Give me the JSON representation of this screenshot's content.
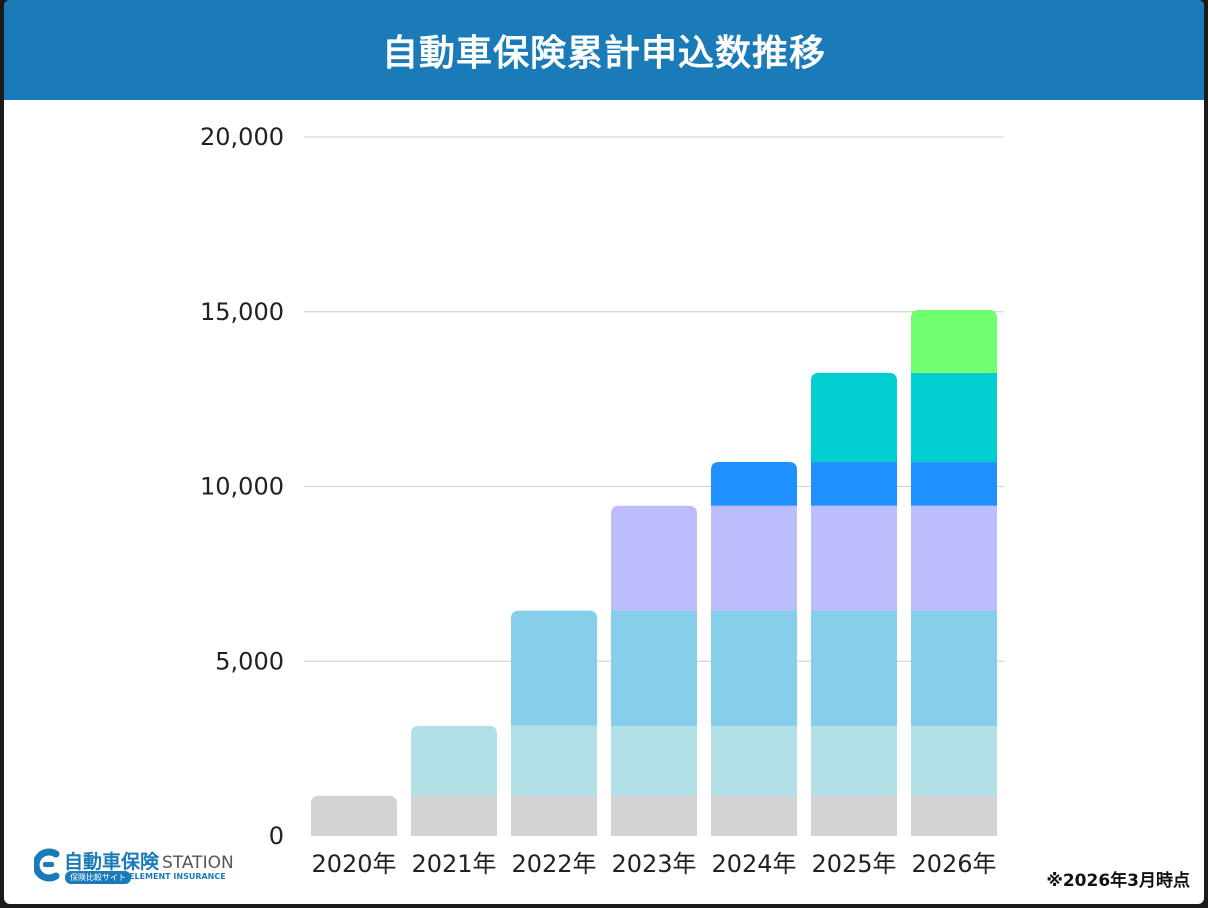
{
  "title": "自動車保険累計申込数推移",
  "note": "※2026年3月時点",
  "logo": {
    "name": "自動車保険",
    "station": "STATION",
    "tagline": "保険比較サイト",
    "subtitle": "ELEMENT INSURANCE"
  },
  "chart_data": {
    "type": "bar",
    "stacked": true,
    "title": "自動車保険累計申込数推移",
    "xlabel": "",
    "ylabel": "",
    "ylim": [
      0,
      20000
    ],
    "yticks": [
      0,
      5000,
      10000,
      15000,
      20000
    ],
    "ytick_labels": [
      "0",
      "5,000",
      "10,000",
      "15,000",
      "20,000"
    ],
    "grid": true,
    "legend": "none",
    "categories": [
      "2020年",
      "2021年",
      "2022年",
      "2023年",
      "2024年",
      "2025年",
      "2026年"
    ],
    "series": [
      {
        "color": "#d3d3d3",
        "values": [
          1150,
          1150,
          1150,
          1150,
          1150,
          1150,
          1150
        ]
      },
      {
        "color": "#b1e0e6",
        "values": [
          0,
          2000,
          2000,
          2000,
          2000,
          2000,
          2000
        ]
      },
      {
        "color": "#87ceeb",
        "values": [
          0,
          0,
          3300,
          3300,
          3300,
          3300,
          3300
        ]
      },
      {
        "color": "#bdbdfd",
        "values": [
          0,
          0,
          0,
          3000,
          3000,
          3000,
          3000
        ]
      },
      {
        "color": "#1e90ff",
        "values": [
          0,
          0,
          0,
          0,
          1250,
          1250,
          1250
        ]
      },
      {
        "color": "#00ced1",
        "values": [
          0,
          0,
          0,
          0,
          0,
          2550,
          2550
        ]
      },
      {
        "color": "#6efe6e",
        "values": [
          0,
          0,
          0,
          0,
          0,
          0,
          1800
        ]
      }
    ]
  }
}
